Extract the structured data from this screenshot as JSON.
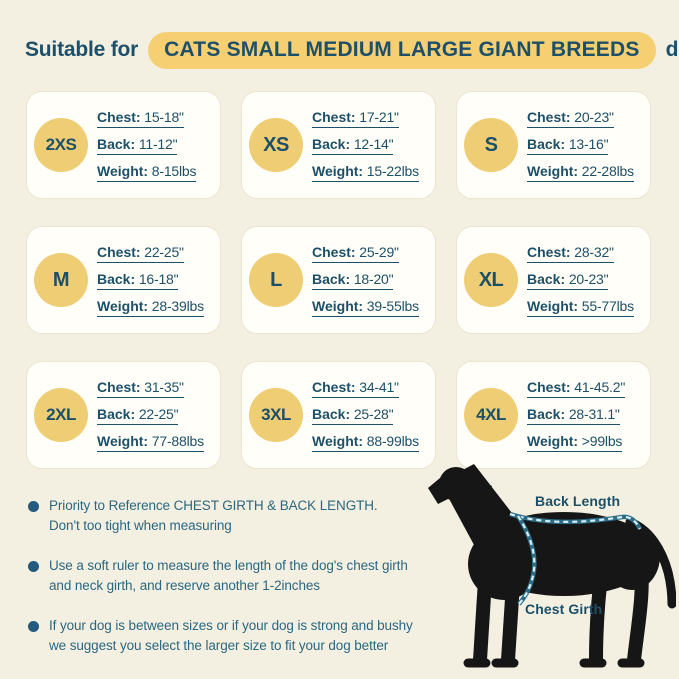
{
  "header": {
    "prefix": "Suitable for",
    "highlight": "CATS SMALL MEDIUM LARGE GIANT BREEDS",
    "suffix": "dogs"
  },
  "colors": {
    "background": "#f3f0e2",
    "teal_text": "#1d5068",
    "note_text": "#2b6780",
    "badge_yellow": "#eecd74",
    "pill_yellow": "#f6cf72",
    "card_bg": "#fffef8",
    "measure_line": "#2e6d87",
    "measure_dash": "#d7f0f8"
  },
  "sizes": [
    {
      "size": "2XS",
      "rows": [
        {
          "label": "Chest:",
          "value": "15-18\""
        },
        {
          "label": "Back:",
          "value": "11-12\""
        },
        {
          "label": "Weight:",
          "value": "8-15lbs"
        }
      ]
    },
    {
      "size": "XS",
      "rows": [
        {
          "label": "Chest:",
          "value": "17-21\""
        },
        {
          "label": "Back:",
          "value": "12-14\""
        },
        {
          "label": "Weight:",
          "value": "15-22lbs"
        }
      ]
    },
    {
      "size": "S",
      "rows": [
        {
          "label": "Chest:",
          "value": "20-23\""
        },
        {
          "label": "Back:",
          "value": "13-16\""
        },
        {
          "label": "Weight:",
          "value": "22-28lbs"
        }
      ]
    },
    {
      "size": "M",
      "rows": [
        {
          "label": "Chest:",
          "value": "22-25\""
        },
        {
          "label": "Back:",
          "value": "16-18\""
        },
        {
          "label": "Weight:",
          "value": "28-39lbs"
        }
      ]
    },
    {
      "size": "L",
      "rows": [
        {
          "label": "Chest:",
          "value": "25-29\""
        },
        {
          "label": "Back:",
          "value": "18-20\""
        },
        {
          "label": "Weight:",
          "value": "39-55lbs"
        }
      ]
    },
    {
      "size": "XL",
      "rows": [
        {
          "label": "Chest:",
          "value": "28-32\""
        },
        {
          "label": "Back:",
          "value": "20-23\""
        },
        {
          "label": "Weight:",
          "value": "55-77lbs"
        }
      ]
    },
    {
      "size": "2XL",
      "rows": [
        {
          "label": "Chest:",
          "value": "31-35\""
        },
        {
          "label": "Back:",
          "value": "22-25\""
        },
        {
          "label": "Weight:",
          "value": "77-88lbs"
        }
      ]
    },
    {
      "size": "3XL",
      "rows": [
        {
          "label": "Chest:",
          "value": "34-41\""
        },
        {
          "label": "Back:",
          "value": "25-28\""
        },
        {
          "label": "Weight:",
          "value": "88-99lbs"
        }
      ]
    },
    {
      "size": "4XL",
      "rows": [
        {
          "label": "Chest:",
          "value": "41-45.2\""
        },
        {
          "label": "Back:",
          "value": "28-31.1\""
        },
        {
          "label": "Weight:",
          "value": ">99lbs"
        }
      ]
    }
  ],
  "notes": [
    {
      "lines": [
        "Priority to Reference CHEST GIRTH & BACK LENGTH.",
        "Don't too tight when measuring"
      ]
    },
    {
      "lines": [
        "Use a soft ruler to measure the length of the dog's chest girth",
        "and neck girth, and reserve another 1-2inches"
      ]
    },
    {
      "lines": [
        "If your dog is between sizes or if your dog is strong and bushy",
        "we suggest you select the larger size to fit your dog better"
      ]
    }
  ],
  "diagram": {
    "back_label": "Back Length",
    "chest_label": "Chest Girth"
  }
}
